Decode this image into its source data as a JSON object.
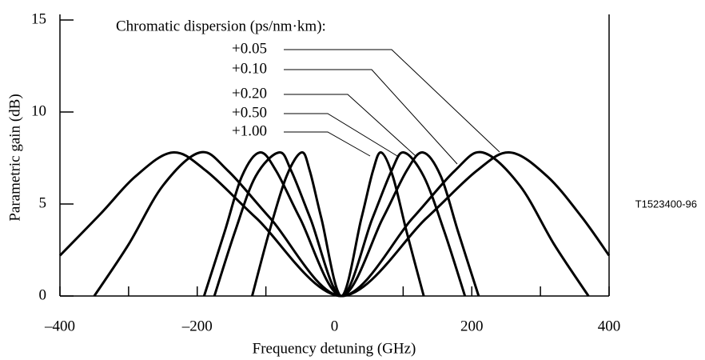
{
  "chart_data": {
    "type": "line",
    "annotation": "Chromatic dispersion (ps/nm·km):",
    "xlabel": "Frequency detuning (GHz)",
    "ylabel": "Parametric gain (dB)",
    "figure_id": "T1523400-96",
    "xlim": [
      -400,
      400
    ],
    "ylim": [
      0,
      15
    ],
    "xticks": [
      {
        "value": -400,
        "label": "–400"
      },
      {
        "value": -200,
        "label": "–200"
      },
      0,
      200,
      400
    ],
    "xminorticks": [
      -300,
      -100,
      100,
      300
    ],
    "yticks": [
      0,
      5,
      10,
      15
    ],
    "series": [
      {
        "name": "+0.05",
        "color": "#000000",
        "x": [
          -400,
          -340,
          -290,
          -236,
          -187,
          -113,
          10,
          133,
          207,
          256,
          310,
          360,
          400
        ],
        "values": [
          2.2,
          4.5,
          6.5,
          7.8,
          6.8,
          4.2,
          0,
          4.2,
          6.8,
          7.8,
          6.5,
          4.3,
          2.2
        ]
      },
      {
        "name": "+0.10",
        "color": "#000000",
        "x": [
          -350,
          -300,
          -250,
          -196,
          -155,
          -93,
          10,
          113,
          175,
          216,
          270,
          320,
          370
        ],
        "values": [
          0,
          2.8,
          6.0,
          7.8,
          6.8,
          4.2,
          0,
          4.2,
          6.8,
          7.8,
          6.0,
          2.8,
          0
        ]
      },
      {
        "name": "+0.20",
        "color": "#000000",
        "x": [
          -190,
          -160,
          -135,
          -109,
          -85,
          -50,
          10,
          70,
          105,
          129,
          155,
          180,
          210
        ],
        "values": [
          0,
          3.5,
          6.5,
          7.8,
          6.8,
          4.2,
          0,
          4.2,
          6.8,
          7.8,
          6.5,
          3.5,
          0
        ]
      },
      {
        "name": "+0.50",
        "color": "#000000",
        "x": [
          -175,
          -145,
          -115,
          -81,
          -63,
          -35,
          10,
          55,
          83,
          101,
          130,
          160,
          190
        ],
        "values": [
          0,
          3.5,
          6.5,
          7.8,
          6.8,
          4.2,
          0,
          4.2,
          6.8,
          7.8,
          6.5,
          3.5,
          0
        ]
      },
      {
        "name": "+1.00",
        "color": "#000000",
        "x": [
          -120,
          -95,
          -70,
          -48,
          -36,
          -19,
          10,
          39,
          56,
          68,
          85,
          105,
          130
        ],
        "values": [
          0,
          3.5,
          6.5,
          7.8,
          6.8,
          4.2,
          0,
          4.2,
          6.8,
          7.8,
          6.5,
          3.5,
          0
        ]
      }
    ]
  }
}
